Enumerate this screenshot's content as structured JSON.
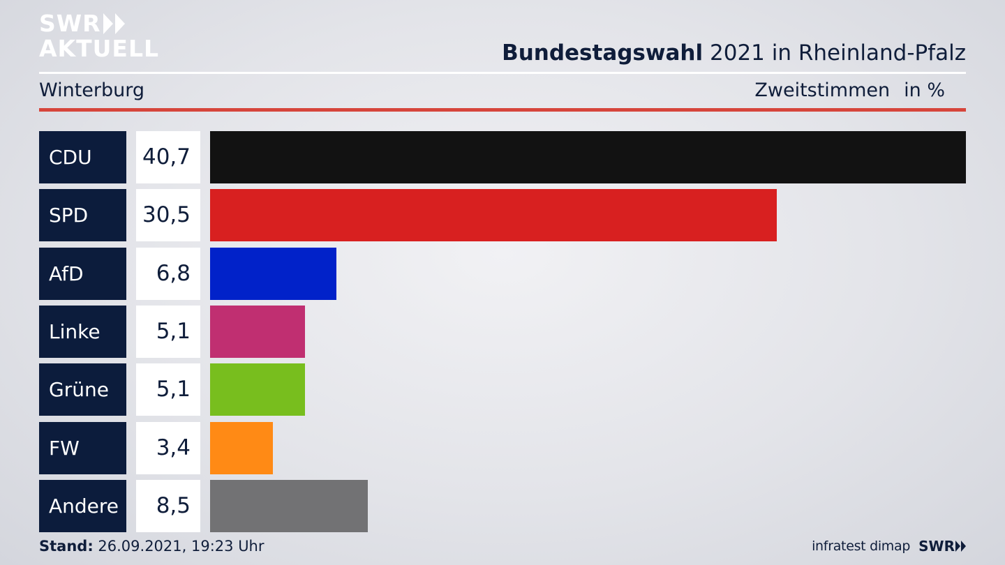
{
  "logo": {
    "line1": "SWR",
    "line2": "AKTUELL"
  },
  "header": {
    "title_bold": "Bundestagswahl",
    "title_rest": "2021 in Rheinland-Pfalz",
    "subtitle": "Winterburg",
    "measure": "Zweitstimmen",
    "unit": "in %"
  },
  "chart_data": {
    "type": "bar",
    "orientation": "horizontal",
    "categories": [
      "CDU",
      "SPD",
      "AfD",
      "Linke",
      "Grüne",
      "FW",
      "Andere"
    ],
    "values": [
      40.7,
      30.5,
      6.8,
      5.1,
      5.1,
      3.4,
      8.5
    ],
    "value_labels": [
      "40,7",
      "30,5",
      "6,8",
      "5,1",
      "5,1",
      "3,4",
      "8,5"
    ],
    "colors": [
      "#121212",
      "#d82020",
      "#0122c9",
      "#c02f71",
      "#78be1e",
      "#ff8a15",
      "#727274"
    ]
  },
  "footer": {
    "stand_label": "Stand:",
    "stand_value": "26.09.2021, 19:23 Uhr",
    "source": "infratest dimap",
    "brand": "SWR"
  },
  "colors": {
    "navy": "#0c1c3c",
    "accent_line": "#d6453b"
  }
}
